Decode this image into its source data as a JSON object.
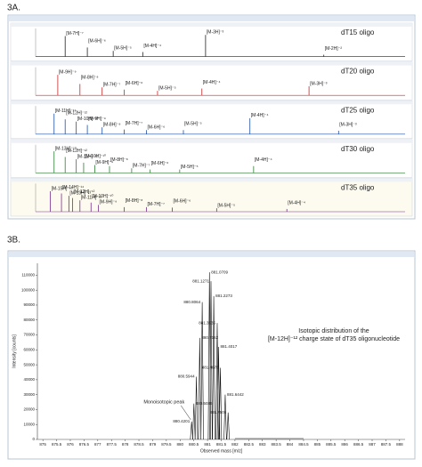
{
  "panel_labels": [
    "3A.",
    "3B."
  ],
  "chart_data": [
    {
      "type": "stack",
      "xlim": [
        0,
        100
      ],
      "ylim": [
        0,
        100
      ],
      "traces": [
        {
          "name": "dT15 oligo",
          "color": "#222222",
          "peaks": [
            {
              "label": "[M-7H]⁻⁷",
              "x": 8,
              "height": 90
            },
            {
              "label": "[M-6H]⁻⁶",
              "x": 14,
              "height": 40
            },
            {
              "label": "[M-5H]⁻⁵",
              "x": 21,
              "height": 25
            },
            {
              "label": "[M-4H]⁻⁴",
              "x": 29,
              "height": 20
            },
            {
              "label": "[M-3H]⁻³",
              "x": 46,
              "height": 95
            },
            {
              "label": "[M-2H]⁻²",
              "x": 78,
              "height": 8
            }
          ]
        },
        {
          "name": "dT20 oligo",
          "color": "#c62828",
          "peaks": [
            {
              "label": "[M-9H]⁻⁹",
              "x": 6,
              "height": 90
            },
            {
              "label": "[M-8H]⁻⁸",
              "x": 12,
              "height": 50
            },
            {
              "label": "[M-7H]⁻⁷",
              "x": 18,
              "height": 35
            },
            {
              "label": "[M-6H]⁻⁶",
              "x": 24,
              "height": 25
            },
            {
              "label": "[M-5H]⁻⁵",
              "x": 33,
              "height": 20
            },
            {
              "label": "[M-4H]⁻⁴",
              "x": 45,
              "height": 30
            },
            {
              "label": "[M-3H]⁻³",
              "x": 74,
              "height": 40
            }
          ]
        },
        {
          "name": "dT25 oligo",
          "color": "#1f4fa8",
          "peaks": [
            {
              "label": "[M-11H]⁻¹¹",
              "x": 5,
              "height": 90
            },
            {
              "label": "[M-12H]⁻¹²",
              "x": 8,
              "height": 65
            },
            {
              "label": "[M-10H]⁻¹⁰",
              "x": 11,
              "height": 55
            },
            {
              "label": "[M-9H]⁻⁹",
              "x": 14,
              "height": 40
            },
            {
              "label": "[M-8H]⁻⁸",
              "x": 18,
              "height": 30
            },
            {
              "label": "[M-7H]⁻⁷",
              "x": 24,
              "height": 20
            },
            {
              "label": "[M-6H]⁻⁶",
              "x": 30,
              "height": 18
            },
            {
              "label": "[M-5H]⁻⁵",
              "x": 40,
              "height": 18
            },
            {
              "label": "[M-4H]⁻⁴",
              "x": 58,
              "height": 70
            },
            {
              "label": "[M-3H]⁻³",
              "x": 82,
              "height": 15
            }
          ]
        },
        {
          "name": "dT30 oligo",
          "color": "#2e7d32",
          "peaks": [
            {
              "label": "[M-13H]⁻¹³",
              "x": 5,
              "height": 95
            },
            {
              "label": "[M-12H]⁻¹²",
              "x": 8,
              "height": 70
            },
            {
              "label": "[M-11H]⁻¹¹",
              "x": 11,
              "height": 60
            },
            {
              "label": "[M-10H]⁻¹⁰",
              "x": 13,
              "height": 45
            },
            {
              "label": "[M-9H]⁻⁹",
              "x": 16,
              "height": 35
            },
            {
              "label": "[M-8H]⁻⁸",
              "x": 20,
              "height": 30
            },
            {
              "label": "[M-7H]⁻⁷",
              "x": 26,
              "height": 20
            },
            {
              "label": "[M-6H]⁻⁶",
              "x": 31,
              "height": 15
            },
            {
              "label": "[M-5H]⁻⁵",
              "x": 39,
              "height": 15
            },
            {
              "label": "[M-4H]⁻⁴",
              "x": 59,
              "height": 30
            }
          ]
        },
        {
          "name": "dT35 oligo",
          "color": "#7b2d8e",
          "peaks": [
            {
              "label": "[M-15H]⁻¹⁵",
              "x": 4,
              "height": 90
            },
            {
              "label": "[M-14H]⁻¹⁴",
              "x": 7,
              "height": 80
            },
            {
              "label": "[M-13H]⁻¹³",
              "x": 9,
              "height": 70
            },
            {
              "label": "[M-12H]⁻¹²",
              "x": 10,
              "height": 60
            },
            {
              "label": "[M-11H]⁻¹¹",
              "x": 12,
              "height": 50
            },
            {
              "label": "[M-10H]⁻¹⁰",
              "x": 15,
              "height": 40
            },
            {
              "label": "[M-9H]⁻⁹",
              "x": 17,
              "height": 30
            },
            {
              "label": "[M-8H]⁻⁸",
              "x": 24,
              "height": 20
            },
            {
              "label": "[M-7H]⁻⁷",
              "x": 30,
              "height": 20
            },
            {
              "label": "[M-6H]⁻⁶",
              "x": 37,
              "height": 18
            },
            {
              "label": "[M-5H]⁻⁵",
              "x": 49,
              "height": 15
            },
            {
              "label": "[M-4H]⁻⁴",
              "x": 68,
              "height": 12
            }
          ]
        }
      ]
    },
    {
      "type": "spectrum",
      "color": "#111111",
      "x_label": "Observed mass [m/z]",
      "y_label": "Intensity [counts]",
      "annotations": [
        "Isotopic distribution of the",
        "[M-12H]⁻¹² charge state of dT35 oligonucleotide"
      ],
      "peak_note": "Monoisotopic peak",
      "x": [
        880.4201,
        880.5036,
        880.5944,
        880.7162,
        880.8064,
        881.0709,
        881.1271,
        881.2273,
        881.3535,
        881.4017,
        881.4678,
        881.6442,
        881.7506
      ],
      "x_labels": [
        "880.4201",
        "880.5036",
        "880.5944",
        "880.7162",
        "880.8064",
        "881.0709",
        "881.1271",
        "881.2273",
        "881.3535",
        "881.4017",
        "881.4678",
        "881.6442",
        "881.7506"
      ],
      "values": [
        12000,
        24000,
        42000,
        68000,
        92000,
        112000,
        106000,
        96000,
        78000,
        62000,
        48000,
        30000,
        18000
      ],
      "xlim": [
        874.8,
        888.2
      ],
      "xticks": [
        875,
        875.5,
        876,
        876.5,
        877,
        877.5,
        878,
        878.5,
        879,
        879.5,
        880,
        880.5,
        881,
        881.5,
        882,
        882.5,
        883,
        883.5,
        884,
        884.5,
        885,
        885.5,
        886,
        886.5,
        887,
        887.5,
        888
      ],
      "ylim": [
        0,
        118000
      ],
      "yticks": [
        0,
        10000,
        20000,
        30000,
        40000,
        50000,
        60000,
        70000,
        80000,
        90000,
        100000,
        110000
      ]
    }
  ]
}
